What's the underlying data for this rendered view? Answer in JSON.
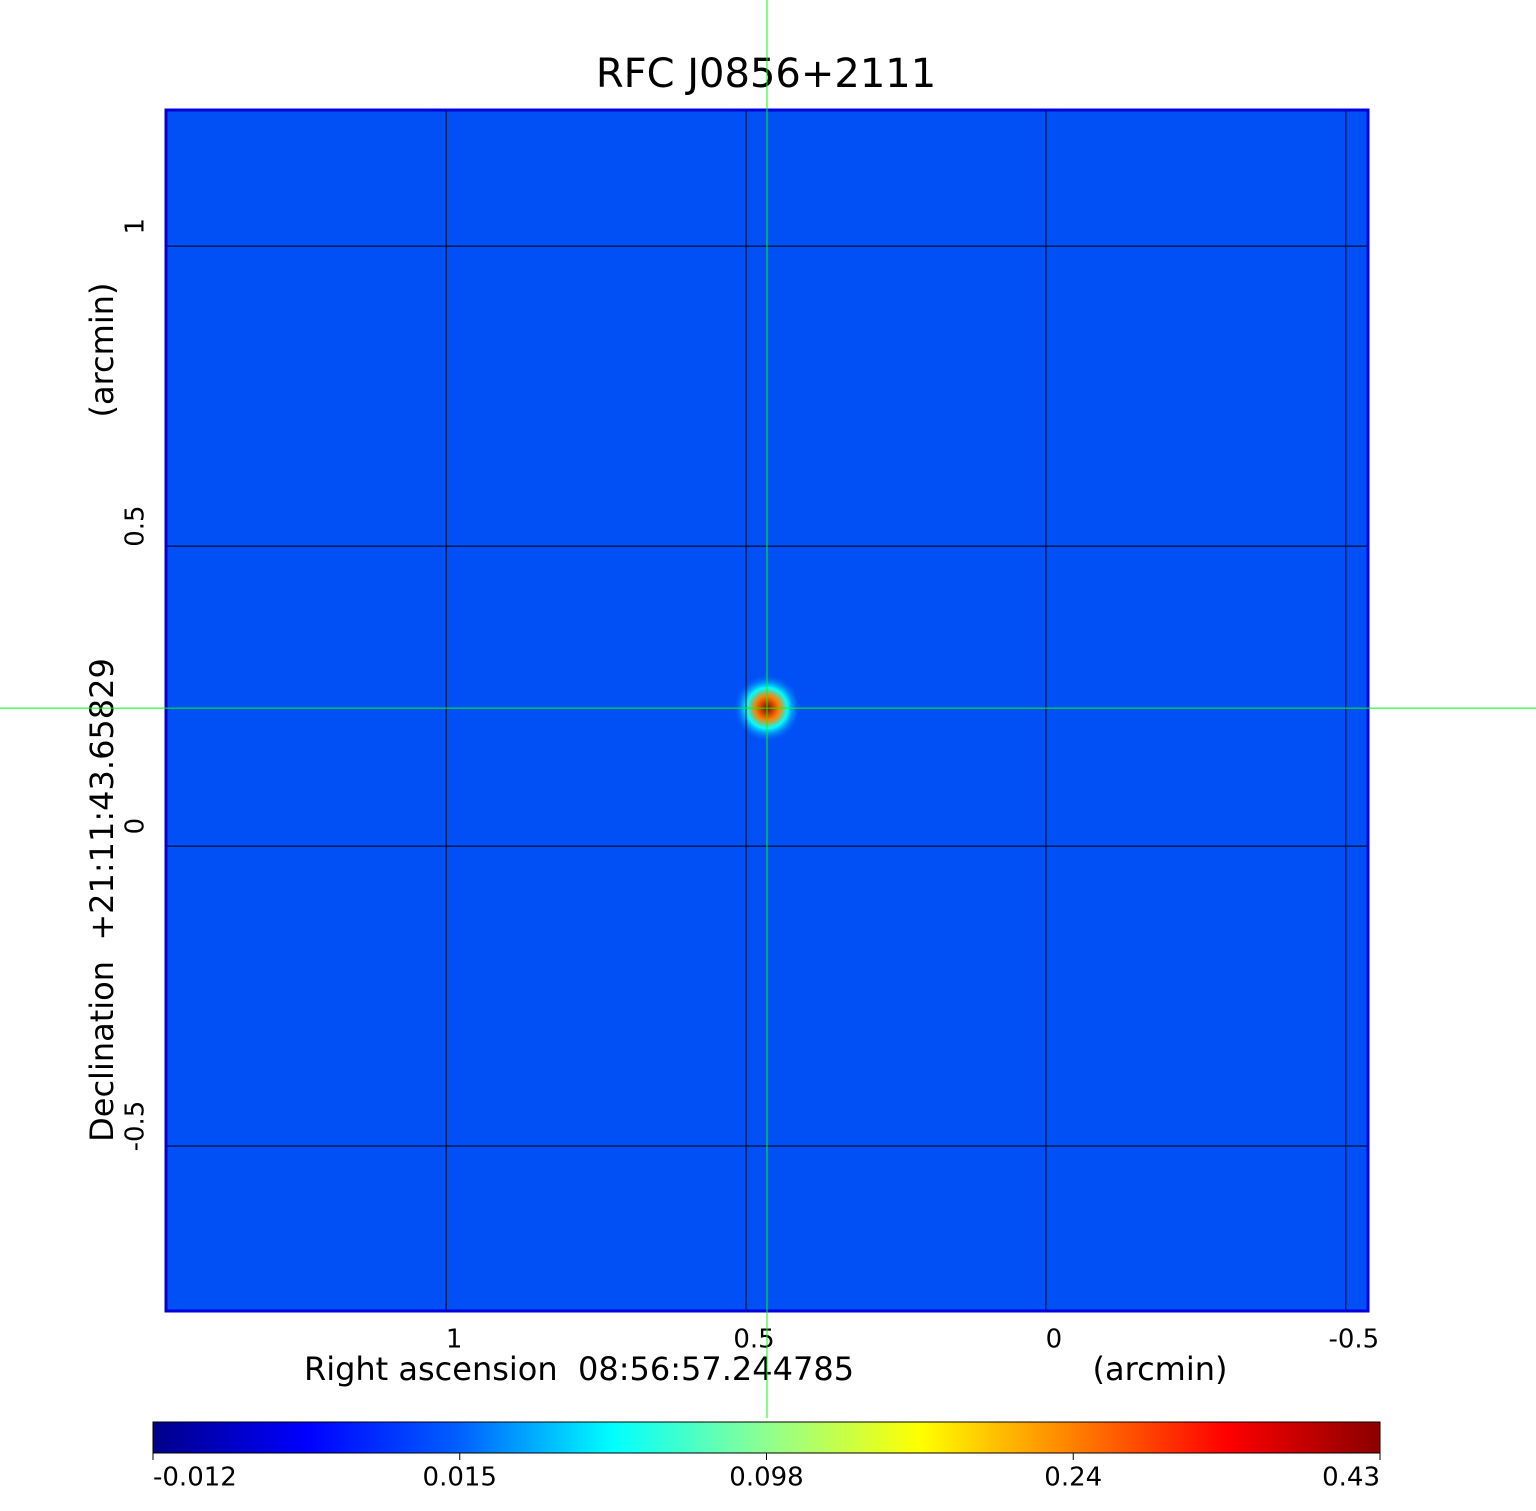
{
  "chart_data": {
    "type": "image",
    "title": "RFC J0856+2111",
    "x_label": "Right ascension  08:56:57.244785",
    "x_unit": "(arcmin)",
    "y_label": "Declination  +21:11:43.65829",
    "y_unit": "(arcmin)",
    "xlim": [
      1.467,
      -0.537
    ],
    "ylim": [
      -0.775,
      1.227
    ],
    "xticks": [
      1.0,
      0.5,
      0.0,
      -0.5
    ],
    "yticks": [
      1.0,
      0.5,
      0.0,
      -0.5
    ],
    "grid": true,
    "source": {
      "ra": 0.465,
      "dec": 0.23,
      "peak": 0.43
    },
    "colorbar_ticks": [
      -0.012,
      0.015,
      0.098,
      0.24,
      0.43
    ],
    "colormap": [
      "#00008b",
      "#0000ff",
      "#0060ff",
      "#00ffff",
      "#90ff90",
      "#ffff00",
      "#ff8000",
      "#ff0000",
      "#8b0000"
    ],
    "background_color": "#0050f5",
    "frame_color": "#0000dd",
    "title_color": "#1010cc",
    "crosshair_color": "#00ff00"
  }
}
